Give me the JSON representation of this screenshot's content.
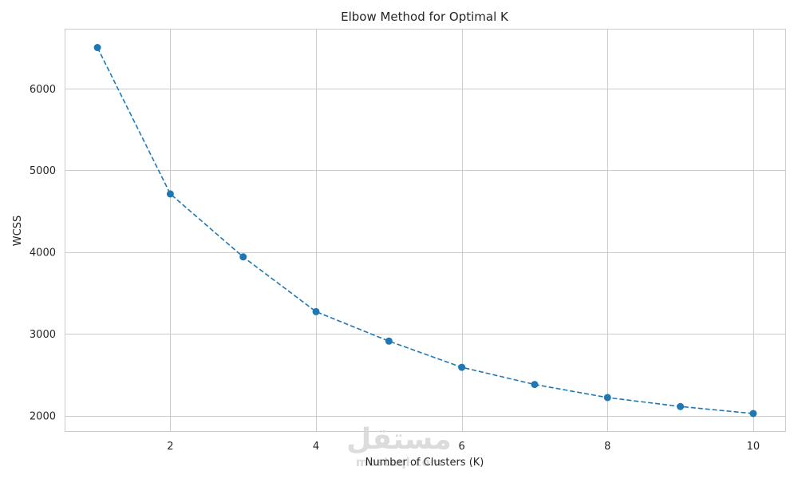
{
  "chart_data": {
    "type": "line",
    "title": "Elbow Method for Optimal K",
    "xlabel": "Number of Clusters (K)",
    "ylabel": "WCSS",
    "x": [
      1,
      2,
      3,
      4,
      5,
      6,
      7,
      8,
      9,
      10
    ],
    "series": [
      {
        "values": [
          6500,
          4710,
          3940,
          3270,
          2910,
          2590,
          2380,
          2220,
          2110,
          2025
        ],
        "color": "#1f77b4",
        "line_style": "dashed",
        "marker": "circle"
      }
    ],
    "xlim": [
      0.55,
      10.45
    ],
    "ylim": [
      1800,
      6730
    ],
    "xticks": [
      2,
      4,
      6,
      8,
      10
    ],
    "yticks": [
      2000,
      3000,
      4000,
      5000,
      6000
    ],
    "xtick_labels": [
      "2",
      "4",
      "6",
      "8",
      "10"
    ],
    "ytick_labels": [
      "2000",
      "3000",
      "4000",
      "5000",
      "6000"
    ],
    "grid": true,
    "colors": {
      "grid": "#cccccc",
      "frame": "#cccccc",
      "text": "#262626",
      "watermark": "#d9d9d9"
    }
  },
  "watermark": {
    "arabic": "مستقل",
    "latin": "mostaql.com"
  }
}
